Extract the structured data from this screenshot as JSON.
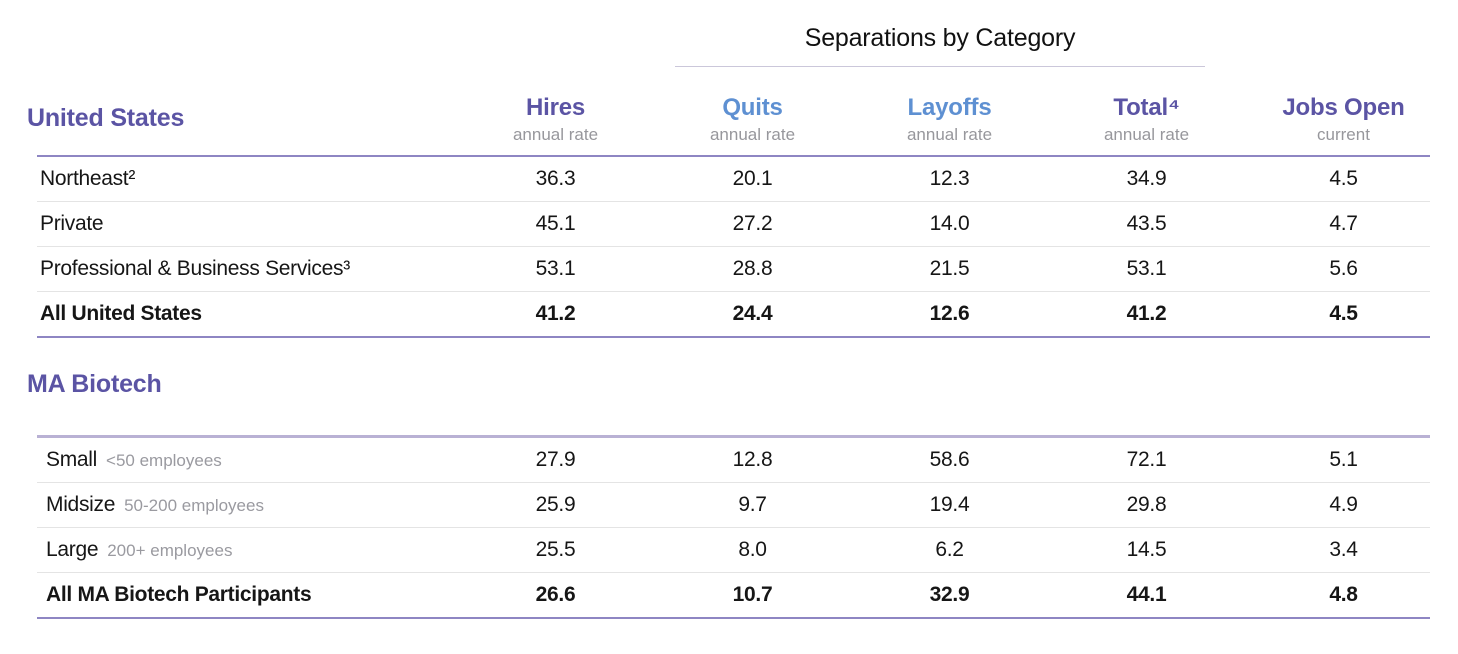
{
  "header": {
    "separations_title": "Separations by Category",
    "columns": [
      {
        "label": "Hires",
        "sub": "annual rate",
        "accent": "#5b54a4"
      },
      {
        "label": "Quits",
        "sub": "annual rate",
        "accent": "#5e90d2"
      },
      {
        "label": "Layoffs",
        "sub": "annual rate",
        "accent": "#5e90d2"
      },
      {
        "label": "Total⁴",
        "sub": "annual rate",
        "accent": "#5b54a4"
      },
      {
        "label": "Jobs Open",
        "sub": "current",
        "accent": "#5b54a4"
      }
    ]
  },
  "colors": {
    "purple_accent": "#5b54a4",
    "blue_accent": "#5e90d2",
    "gray_subtext": "#97979c",
    "purple_rule": "#8e86c3",
    "lavender_rule": "#b9b1d4",
    "light_row_rule": "#e4e4e4",
    "text": "#161616"
  },
  "sections": [
    {
      "title": "United States",
      "rows": [
        {
          "label": "Northeast²",
          "sublabel": "",
          "bold": false,
          "values": [
            "36.3",
            "20.1",
            "12.3",
            "34.9",
            "4.5"
          ]
        },
        {
          "label": "Private",
          "sublabel": "",
          "bold": false,
          "values": [
            "45.1",
            "27.2",
            "14.0",
            "43.5",
            "4.7"
          ]
        },
        {
          "label": "Professional & Business Services³",
          "sublabel": "",
          "bold": false,
          "values": [
            "53.1",
            "28.8",
            "21.5",
            "53.1",
            "5.6"
          ]
        },
        {
          "label": "All United States",
          "sublabel": "",
          "bold": true,
          "values": [
            "41.2",
            "24.4",
            "12.6",
            "41.2",
            "4.5"
          ]
        }
      ]
    },
    {
      "title": "MA Biotech",
      "rows": [
        {
          "label": "Small",
          "sublabel": "<50 employees",
          "bold": false,
          "values": [
            "27.9",
            "12.8",
            "58.6",
            "72.1",
            "5.1"
          ]
        },
        {
          "label": "Midsize",
          "sublabel": "50-200 employees",
          "bold": false,
          "values": [
            "25.9",
            "9.7",
            "19.4",
            "29.8",
            "4.9"
          ]
        },
        {
          "label": "Large",
          "sublabel": "200+ employees",
          "bold": false,
          "values": [
            "25.5",
            "8.0",
            "6.2",
            "14.5",
            "3.4"
          ]
        },
        {
          "label": "All MA Biotech Participants",
          "sublabel": "",
          "bold": true,
          "values": [
            "26.6",
            "10.7",
            "32.9",
            "44.1",
            "4.8"
          ]
        }
      ]
    }
  ],
  "chart_data": {
    "type": "table",
    "title": "Separations by Category",
    "notes": "Separations by Category header spans the Quits, Layoffs and Total columns",
    "columns": [
      "",
      "Hires (annual rate)",
      "Quits (annual rate)",
      "Layoffs (annual rate)",
      "Total⁴ (annual rate)",
      "Jobs Open (current)"
    ],
    "rows": [
      [
        "United States: Northeast²",
        36.3,
        20.1,
        12.3,
        34.9,
        4.5
      ],
      [
        "United States: Private",
        45.1,
        27.2,
        14.0,
        43.5,
        4.7
      ],
      [
        "United States: Professional & Business Services³",
        53.1,
        28.8,
        21.5,
        53.1,
        5.6
      ],
      [
        "All United States",
        41.2,
        24.4,
        12.6,
        41.2,
        4.5
      ],
      [
        "MA Biotech: Small (<50 employees)",
        27.9,
        12.8,
        58.6,
        72.1,
        5.1
      ],
      [
        "MA Biotech: Midsize (50-200 employees)",
        25.9,
        9.7,
        19.4,
        29.8,
        4.9
      ],
      [
        "MA Biotech: Large (200+ employees)",
        25.5,
        8.0,
        6.2,
        14.5,
        3.4
      ],
      [
        "All MA Biotech Participants",
        26.6,
        10.7,
        32.9,
        44.1,
        4.8
      ]
    ]
  }
}
